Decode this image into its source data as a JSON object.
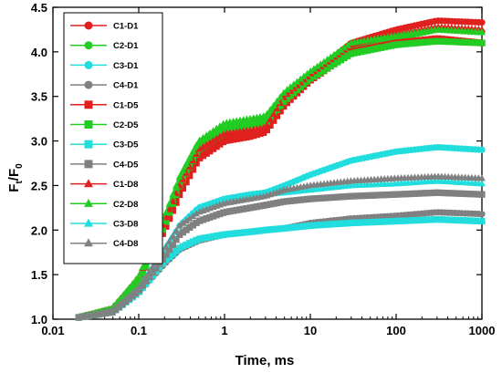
{
  "chart_data": {
    "type": "scatter",
    "title": "",
    "xlabel": "Time, ms",
    "ylabel_main": "F",
    "ylabel_sub1": "t",
    "ylabel_mid": "/F",
    "ylabel_sub2": "0",
    "x_scale": "log",
    "xlim": [
      0.01,
      1000
    ],
    "ylim": [
      1.0,
      4.5
    ],
    "x_ticks": [
      0.01,
      0.1,
      1,
      10,
      100,
      1000
    ],
    "x_tick_labels": [
      "0.01",
      "0.1",
      "1",
      "10",
      "100",
      "1000"
    ],
    "y_ticks": [
      1.0,
      1.5,
      2.0,
      2.5,
      3.0,
      3.5,
      4.0,
      4.5
    ],
    "y_tick_labels": [
      "1.0",
      "1.5",
      "2.0",
      "2.5",
      "3.0",
      "3.5",
      "4.0",
      "4.5"
    ],
    "grid": false,
    "legend_position": "top-left",
    "series": [
      {
        "name": "C1-D1",
        "color": "#e0201e",
        "marker": "circle",
        "x": [
          0.02,
          0.05,
          0.1,
          0.2,
          0.3,
          0.5,
          1,
          2,
          3,
          5,
          10,
          30,
          100,
          300,
          1000
        ],
        "y": [
          1.02,
          1.12,
          1.45,
          2.05,
          2.45,
          2.85,
          3.05,
          3.08,
          3.12,
          3.45,
          3.72,
          4.1,
          4.25,
          4.35,
          4.33
        ]
      },
      {
        "name": "C2-D1",
        "color": "#22cc22",
        "marker": "circle",
        "x": [
          0.02,
          0.05,
          0.1,
          0.2,
          0.3,
          0.5,
          1,
          2,
          3,
          5,
          10,
          30,
          100,
          300,
          1000
        ],
        "y": [
          1.02,
          1.12,
          1.45,
          2.1,
          2.55,
          2.95,
          3.15,
          3.22,
          3.25,
          3.5,
          3.75,
          4.05,
          4.15,
          4.25,
          4.22
        ]
      },
      {
        "name": "C3-D1",
        "color": "#22dddd",
        "marker": "circle",
        "x": [
          0.02,
          0.05,
          0.1,
          0.2,
          0.3,
          0.5,
          1,
          2,
          3,
          5,
          10,
          30,
          100,
          300,
          1000
        ],
        "y": [
          1.02,
          1.1,
          1.35,
          1.75,
          2.05,
          2.25,
          2.35,
          2.4,
          2.42,
          2.5,
          2.62,
          2.78,
          2.88,
          2.93,
          2.9
        ]
      },
      {
        "name": "C4-D1",
        "color": "#808080",
        "marker": "circle",
        "x": [
          0.02,
          0.05,
          0.1,
          0.2,
          0.3,
          0.5,
          1,
          2,
          3,
          5,
          10,
          30,
          100,
          300,
          1000
        ],
        "y": [
          1.02,
          1.08,
          1.3,
          1.62,
          1.78,
          1.88,
          1.95,
          1.98,
          2.0,
          2.02,
          2.08,
          2.13,
          2.16,
          2.2,
          2.18
        ]
      },
      {
        "name": "C1-D5",
        "color": "#e0201e",
        "marker": "square",
        "x": [
          0.02,
          0.05,
          0.1,
          0.2,
          0.3,
          0.5,
          1,
          2,
          3,
          5,
          10,
          30,
          100,
          300,
          1000
        ],
        "y": [
          1.02,
          1.1,
          1.42,
          2.0,
          2.4,
          2.8,
          3.0,
          3.05,
          3.1,
          3.4,
          3.68,
          4.0,
          4.1,
          4.15,
          4.1
        ]
      },
      {
        "name": "C2-D5",
        "color": "#22cc22",
        "marker": "square",
        "x": [
          0.02,
          0.05,
          0.1,
          0.2,
          0.3,
          0.5,
          1,
          2,
          3,
          5,
          10,
          30,
          100,
          300,
          1000
        ],
        "y": [
          1.02,
          1.1,
          1.42,
          2.05,
          2.5,
          2.9,
          3.1,
          3.18,
          3.2,
          3.45,
          3.7,
          3.98,
          4.08,
          4.12,
          4.1
        ]
      },
      {
        "name": "C3-D5",
        "color": "#22dddd",
        "marker": "square",
        "x": [
          0.02,
          0.05,
          0.1,
          0.2,
          0.3,
          0.5,
          1,
          2,
          3,
          5,
          10,
          30,
          100,
          300,
          1000
        ],
        "y": [
          1.02,
          1.08,
          1.3,
          1.65,
          1.8,
          1.9,
          1.95,
          1.98,
          2.0,
          2.02,
          2.05,
          2.08,
          2.1,
          2.12,
          2.1
        ]
      },
      {
        "name": "C4-D5",
        "color": "#808080",
        "marker": "square",
        "x": [
          0.02,
          0.05,
          0.1,
          0.2,
          0.3,
          0.5,
          1,
          2,
          3,
          5,
          10,
          30,
          100,
          300,
          1000
        ],
        "y": [
          1.02,
          1.08,
          1.32,
          1.7,
          1.95,
          2.1,
          2.2,
          2.25,
          2.28,
          2.32,
          2.35,
          2.38,
          2.4,
          2.42,
          2.4
        ]
      },
      {
        "name": "C1-D8",
        "color": "#e0201e",
        "marker": "triangle",
        "x": [
          0.02,
          0.05,
          0.1,
          0.2,
          0.3,
          0.5,
          1,
          2,
          3,
          5,
          10,
          30,
          100,
          300,
          1000
        ],
        "y": [
          1.02,
          1.12,
          1.48,
          2.1,
          2.5,
          2.9,
          3.08,
          3.12,
          3.15,
          3.5,
          3.75,
          4.08,
          4.2,
          4.28,
          4.25
        ]
      },
      {
        "name": "C2-D8",
        "color": "#22cc22",
        "marker": "triangle",
        "x": [
          0.02,
          0.05,
          0.1,
          0.2,
          0.3,
          0.5,
          1,
          2,
          3,
          5,
          10,
          30,
          100,
          300,
          1000
        ],
        "y": [
          1.02,
          1.12,
          1.48,
          2.15,
          2.6,
          3.0,
          3.2,
          3.25,
          3.28,
          3.55,
          3.78,
          4.1,
          4.18,
          4.25,
          4.22
        ]
      },
      {
        "name": "C3-D8",
        "color": "#22dddd",
        "marker": "triangle",
        "x": [
          0.02,
          0.05,
          0.1,
          0.2,
          0.3,
          0.5,
          1,
          2,
          3,
          5,
          10,
          30,
          100,
          300,
          1000
        ],
        "y": [
          1.02,
          1.1,
          1.35,
          1.8,
          2.05,
          2.25,
          2.35,
          2.38,
          2.4,
          2.42,
          2.45,
          2.5,
          2.52,
          2.55,
          2.52
        ]
      },
      {
        "name": "C4-D8",
        "color": "#808080",
        "marker": "triangle",
        "x": [
          0.02,
          0.05,
          0.1,
          0.2,
          0.3,
          0.5,
          1,
          2,
          3,
          5,
          10,
          30,
          100,
          300,
          1000
        ],
        "y": [
          1.02,
          1.1,
          1.35,
          1.78,
          2.05,
          2.2,
          2.3,
          2.35,
          2.38,
          2.45,
          2.5,
          2.55,
          2.58,
          2.6,
          2.58
        ]
      }
    ]
  }
}
